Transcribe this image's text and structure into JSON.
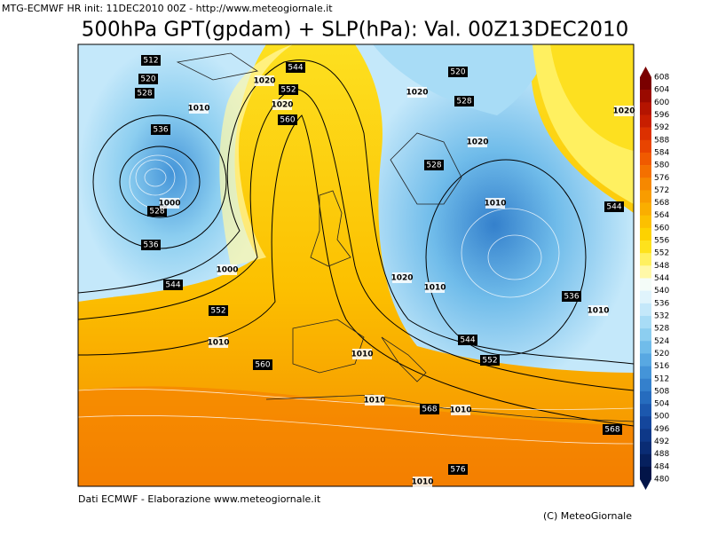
{
  "header": {
    "info": "MTG-ECMWF HR init: 11DEC2010 00Z - http://www.meteogiornale.it",
    "title": "500hPa GPT(gpdam) + SLP(hPa): Val. 00Z13DEC2010"
  },
  "colorbar": {
    "labels": [
      608,
      604,
      600,
      596,
      592,
      588,
      584,
      580,
      576,
      572,
      568,
      564,
      560,
      556,
      552,
      548,
      544,
      540,
      536,
      532,
      528,
      524,
      520,
      516,
      512,
      508,
      504,
      500,
      496,
      492,
      488,
      484,
      480
    ],
    "colors": [
      "#7a0000",
      "#9a0a00",
      "#b41400",
      "#c81e00",
      "#dc3000",
      "#e84400",
      "#f05a00",
      "#f47000",
      "#f68800",
      "#f89c00",
      "#faae00",
      "#fcc000",
      "#fdd200",
      "#fee21c",
      "#fff060",
      "#fff8a8",
      "#f4fcf8",
      "#e0f4fc",
      "#c4e8fa",
      "#a8dcf6",
      "#8ccef0",
      "#70bcea",
      "#58a8e2",
      "#4494d8",
      "#3480cc",
      "#266cbe",
      "#1c58ae",
      "#14469c",
      "#0e3888",
      "#0a2c74",
      "#06205e",
      "#021448"
    ]
  },
  "contour_labels": [
    512,
    520,
    528,
    536,
    528,
    1000,
    536,
    1000,
    544,
    552,
    1010,
    560,
    1010,
    1020,
    552,
    544,
    1020,
    560,
    520,
    528,
    1020,
    1020,
    528,
    1010,
    544,
    1020,
    1010,
    536,
    1010,
    544,
    552,
    1010,
    1010,
    568,
    1010,
    568,
    576,
    1010,
    1020
  ],
  "footer": {
    "source": "Dati ECMWF - Elaborazione www.meteogiornale.it",
    "copyright": "(C) MeteoGiornale"
  }
}
